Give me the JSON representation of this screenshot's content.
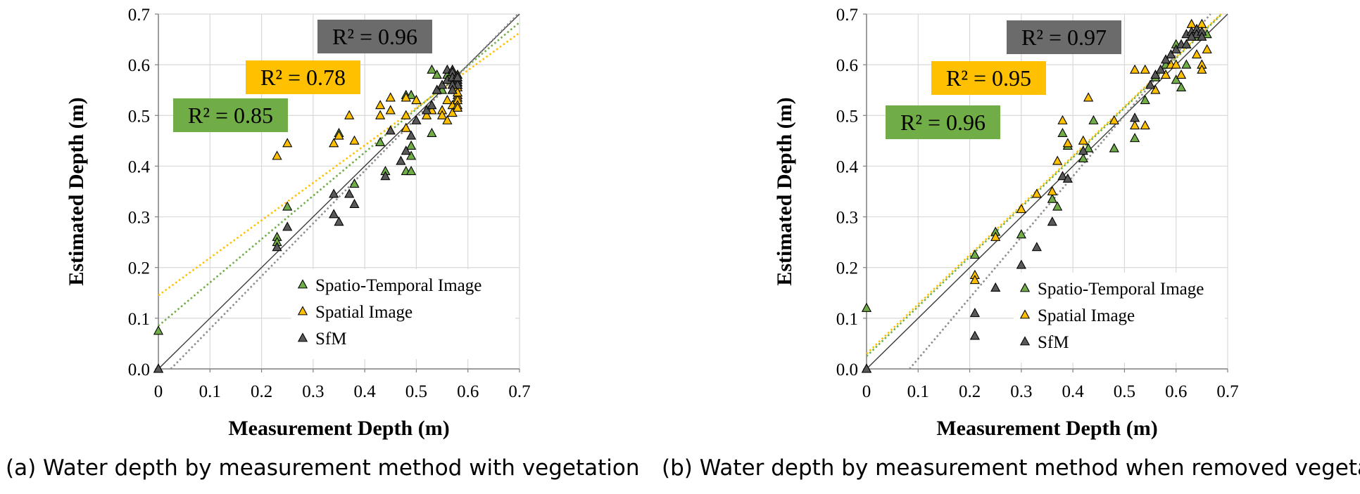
{
  "chart_data": [
    {
      "type": "scatter",
      "caption": "(a) Water depth by measurement method with vegetation",
      "xlabel": "Measurement  Depth  (m)",
      "ylabel": "Estimated  Depth  (m)",
      "xlim": [
        0,
        0.7
      ],
      "ylim": [
        0,
        0.7
      ],
      "xticks": [
        "0",
        "0.1",
        "0.2",
        "0.3",
        "0.4",
        "0.5",
        "0.6",
        "0.7"
      ],
      "yticks": [
        "0.0",
        "0.1",
        "0.2",
        "0.3",
        "0.4",
        "0.5",
        "0.6",
        "0.7"
      ],
      "grid": true,
      "legend_position": "bottom-right",
      "series": [
        {
          "name": "Spatio-Temporal Image",
          "color": "#70ad47",
          "trend": {
            "intercept": 0.085,
            "slope": 0.855
          },
          "r2_label": "R² = 0.85",
          "points": [
            [
              0,
              0.075
            ],
            [
              0,
              0.0
            ],
            [
              0.23,
              0.26
            ],
            [
              0.23,
              0.25
            ],
            [
              0.25,
              0.32
            ],
            [
              0.35,
              0.465
            ],
            [
              0.38,
              0.365
            ],
            [
              0.43,
              0.447
            ],
            [
              0.44,
              0.39
            ],
            [
              0.48,
              0.39
            ],
            [
              0.48,
              0.54
            ],
            [
              0.49,
              0.39
            ],
            [
              0.49,
              0.44
            ],
            [
              0.49,
              0.42
            ],
            [
              0.49,
              0.54
            ],
            [
              0.5,
              0.53
            ],
            [
              0.53,
              0.465
            ],
            [
              0.53,
              0.59
            ],
            [
              0.54,
              0.58
            ],
            [
              0.55,
              0.55
            ],
            [
              0.56,
              0.58
            ],
            [
              0.57,
              0.57
            ],
            [
              0.58,
              0.56
            ]
          ]
        },
        {
          "name": "Spatial Image",
          "color": "#ffc000",
          "trend": {
            "intercept": 0.145,
            "slope": 0.74
          },
          "r2_label": "R² = 0.78",
          "points": [
            [
              0,
              0.0
            ],
            [
              0.23,
              0.42
            ],
            [
              0.25,
              0.445
            ],
            [
              0.34,
              0.445
            ],
            [
              0.35,
              0.46
            ],
            [
              0.37,
              0.5
            ],
            [
              0.38,
              0.45
            ],
            [
              0.43,
              0.52
            ],
            [
              0.43,
              0.5
            ],
            [
              0.45,
              0.535
            ],
            [
              0.45,
              0.51
            ],
            [
              0.48,
              0.535
            ],
            [
              0.48,
              0.5
            ],
            [
              0.48,
              0.475
            ],
            [
              0.5,
              0.53
            ],
            [
              0.52,
              0.5
            ],
            [
              0.53,
              0.51
            ],
            [
              0.54,
              0.55
            ],
            [
              0.55,
              0.51
            ],
            [
              0.55,
              0.5
            ],
            [
              0.56,
              0.49
            ],
            [
              0.57,
              0.52
            ],
            [
              0.57,
              0.505
            ],
            [
              0.58,
              0.54
            ],
            [
              0.58,
              0.535
            ],
            [
              0.58,
              0.53
            ],
            [
              0.58,
              0.52
            ],
            [
              0.58,
              0.515
            ],
            [
              0.57,
              0.55
            ],
            [
              0.58,
              0.555
            ],
            [
              0.56,
              0.53
            ],
            [
              0.58,
              0.545
            ]
          ]
        },
        {
          "name": "SfM",
          "color": "#595959",
          "trend": {
            "intercept": -0.025,
            "slope": 1.04
          },
          "r2_label": "R² = 0.96",
          "points": [
            [
              0,
              0.0
            ],
            [
              0.23,
              0.24
            ],
            [
              0.25,
              0.28
            ],
            [
              0.34,
              0.305
            ],
            [
              0.34,
              0.345
            ],
            [
              0.35,
              0.29
            ],
            [
              0.37,
              0.345
            ],
            [
              0.38,
              0.325
            ],
            [
              0.44,
              0.38
            ],
            [
              0.45,
              0.47
            ],
            [
              0.47,
              0.41
            ],
            [
              0.48,
              0.43
            ],
            [
              0.49,
              0.46
            ],
            [
              0.5,
              0.49
            ],
            [
              0.52,
              0.51
            ],
            [
              0.53,
              0.52
            ],
            [
              0.54,
              0.55
            ],
            [
              0.55,
              0.56
            ],
            [
              0.56,
              0.57
            ],
            [
              0.56,
              0.59
            ],
            [
              0.57,
              0.59
            ],
            [
              0.57,
              0.585
            ],
            [
              0.57,
              0.575
            ],
            [
              0.58,
              0.58
            ],
            [
              0.58,
              0.57
            ],
            [
              0.58,
              0.565
            ],
            [
              0.58,
              0.56
            ],
            [
              0.57,
              0.56
            ],
            [
              0.58,
              0.575
            ],
            [
              0.57,
              0.55
            ]
          ]
        }
      ]
    },
    {
      "type": "scatter",
      "caption": "(b) Water depth by measurement method when removed vegetation",
      "xlabel": "Measurement  Depth  (m)",
      "ylabel": "Estimated  Depth  (m)",
      "xlim": [
        0,
        0.7
      ],
      "ylim": [
        0,
        0.7
      ],
      "xticks": [
        "0",
        "0.1",
        "0.2",
        "0.3",
        "0.4",
        "0.5",
        "0.6",
        "0.7"
      ],
      "yticks": [
        "0.0",
        "0.1",
        "0.2",
        "0.3",
        "0.4",
        "0.5",
        "0.6",
        "0.7"
      ],
      "grid": true,
      "legend_position": "bottom-right",
      "series": [
        {
          "name": "Spatio-Temporal Image",
          "color": "#70ad47",
          "trend": {
            "intercept": 0.025,
            "slope": 0.98
          },
          "r2_label": "R² = 0.96",
          "points": [
            [
              0,
              0.12
            ],
            [
              0,
              0.0
            ],
            [
              0.21,
              0.225
            ],
            [
              0.25,
              0.27
            ],
            [
              0.3,
              0.265
            ],
            [
              0.36,
              0.335
            ],
            [
              0.37,
              0.32
            ],
            [
              0.38,
              0.465
            ],
            [
              0.39,
              0.44
            ],
            [
              0.42,
              0.415
            ],
            [
              0.43,
              0.435
            ],
            [
              0.44,
              0.49
            ],
            [
              0.48,
              0.435
            ],
            [
              0.52,
              0.455
            ],
            [
              0.54,
              0.53
            ],
            [
              0.56,
              0.575
            ],
            [
              0.58,
              0.6
            ],
            [
              0.6,
              0.64
            ],
            [
              0.6,
              0.57
            ],
            [
              0.61,
              0.555
            ],
            [
              0.62,
              0.6
            ],
            [
              0.63,
              0.66
            ],
            [
              0.64,
              0.655
            ],
            [
              0.65,
              0.6
            ],
            [
              0.66,
              0.66
            ]
          ]
        },
        {
          "name": "Spatial Image",
          "color": "#ffc000",
          "trend": {
            "intercept": 0.03,
            "slope": 0.975
          },
          "r2_label": "R² = 0.95",
          "points": [
            [
              0,
              0.0
            ],
            [
              0.21,
              0.185
            ],
            [
              0.21,
              0.175
            ],
            [
              0.25,
              0.26
            ],
            [
              0.3,
              0.315
            ],
            [
              0.33,
              0.345
            ],
            [
              0.36,
              0.35
            ],
            [
              0.37,
              0.41
            ],
            [
              0.38,
              0.49
            ],
            [
              0.39,
              0.445
            ],
            [
              0.42,
              0.45
            ],
            [
              0.43,
              0.535
            ],
            [
              0.48,
              0.49
            ],
            [
              0.52,
              0.59
            ],
            [
              0.52,
              0.48
            ],
            [
              0.54,
              0.48
            ],
            [
              0.54,
              0.59
            ],
            [
              0.56,
              0.55
            ],
            [
              0.58,
              0.58
            ],
            [
              0.59,
              0.6
            ],
            [
              0.6,
              0.6
            ],
            [
              0.61,
              0.58
            ],
            [
              0.62,
              0.64
            ],
            [
              0.63,
              0.68
            ],
            [
              0.64,
              0.67
            ],
            [
              0.64,
              0.62
            ],
            [
              0.65,
              0.68
            ],
            [
              0.65,
              0.6
            ],
            [
              0.66,
              0.63
            ],
            [
              0.65,
              0.59
            ]
          ]
        },
        {
          "name": "SfM",
          "color": "#595959",
          "trend": {
            "intercept": -0.1,
            "slope": 1.2
          },
          "r2_label": "R² = 0.97",
          "points": [
            [
              0,
              0.0
            ],
            [
              0.21,
              0.11
            ],
            [
              0.21,
              0.065
            ],
            [
              0.25,
              0.16
            ],
            [
              0.3,
              0.205
            ],
            [
              0.33,
              0.24
            ],
            [
              0.36,
              0.29
            ],
            [
              0.38,
              0.38
            ],
            [
              0.39,
              0.375
            ],
            [
              0.42,
              0.43
            ],
            [
              0.52,
              0.495
            ],
            [
              0.55,
              0.56
            ],
            [
              0.56,
              0.58
            ],
            [
              0.57,
              0.59
            ],
            [
              0.58,
              0.61
            ],
            [
              0.59,
              0.62
            ],
            [
              0.6,
              0.63
            ],
            [
              0.61,
              0.64
            ],
            [
              0.62,
              0.66
            ],
            [
              0.63,
              0.665
            ],
            [
              0.64,
              0.67
            ],
            [
              0.64,
              0.66
            ],
            [
              0.65,
              0.665
            ],
            [
              0.65,
              0.655
            ],
            [
              0.63,
              0.655
            ],
            [
              0.62,
              0.64
            ]
          ]
        }
      ]
    }
  ]
}
